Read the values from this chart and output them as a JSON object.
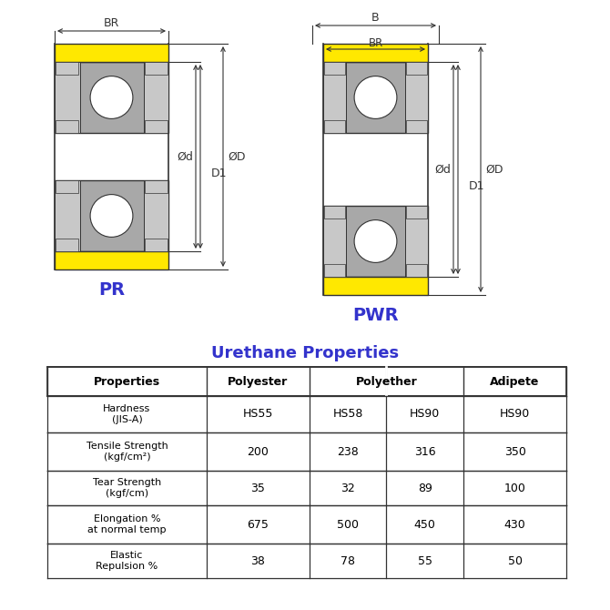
{
  "title_color": "#3333cc",
  "line_color": "#333333",
  "yellow_color": "#FFE800",
  "gray_color": "#A8A8A8",
  "light_gray": "#C8C8C8",
  "white": "#FFFFFF",
  "pr_label": "PR",
  "pwr_label": "PWR",
  "table_title": "Urethane Properties",
  "table_rows": [
    [
      "Hardness\n(JIS-A)",
      "HS55",
      "HS58",
      "HS90",
      "HS90"
    ],
    [
      "Tensile Strength\n(kgf/cm²)",
      "200",
      "238",
      "316",
      "350"
    ],
    [
      "Tear Strength\n(kgf/cm)",
      "35",
      "32",
      "89",
      "100"
    ],
    [
      "Elongation %\nat normal temp",
      "675",
      "500",
      "450",
      "430"
    ],
    [
      "Elastic\nRepulsion %",
      "38",
      "78",
      "55",
      "50"
    ]
  ]
}
